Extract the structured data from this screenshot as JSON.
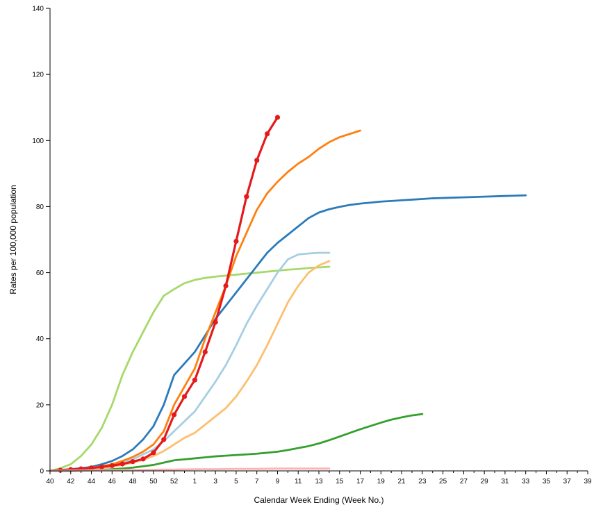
{
  "chart_data": {
    "type": "line",
    "xlabel": "Calendar Week Ending (Week No.)",
    "ylabel": "Rates per 100,000 population",
    "ylim": [
      0,
      140
    ],
    "yticks": [
      0,
      20,
      40,
      60,
      80,
      100,
      120,
      140
    ],
    "x_tick_labels": [
      "40",
      "42",
      "44",
      "46",
      "48",
      "50",
      "52",
      "1",
      "3",
      "5",
      "7",
      "9",
      "11",
      "13",
      "15",
      "17",
      "19",
      "21",
      "23",
      "25",
      "27",
      "29",
      "31",
      "33",
      "35",
      "37",
      "39"
    ],
    "grid": false,
    "series": [
      {
        "color": "#a6d96a",
        "markers": false,
        "values": [
          0,
          0.8,
          2,
          4.5,
          8,
          13,
          20,
          29,
          36,
          42,
          48,
          53,
          55,
          56.8,
          57.8,
          58.4,
          58.8,
          59.1,
          59.4,
          59.7,
          60,
          60.3,
          60.6,
          60.9,
          61.1,
          61.4,
          61.6,
          61.8
        ]
      },
      {
        "color": "#2b7bba",
        "markers": false,
        "values": [
          0,
          0.3,
          0.5,
          0.8,
          1.2,
          2,
          3,
          4.5,
          6.5,
          9.5,
          13.5,
          20,
          29,
          32.5,
          36,
          41,
          46,
          50,
          54,
          58,
          62,
          66,
          69,
          71.5,
          74,
          76.5,
          78.2,
          79.2
        ]
      },
      {
        "color": "#a6cee3",
        "markers": false,
        "values": [
          0,
          0.2,
          0.3,
          0.5,
          0.8,
          1.2,
          1.8,
          2.5,
          3.5,
          5,
          6.5,
          9,
          12,
          15,
          18,
          22.5,
          27,
          32,
          38,
          44.5,
          50,
          55,
          60,
          64,
          65.5,
          65.8,
          66,
          66
        ]
      },
      {
        "color": "#fdbf6f",
        "markers": false,
        "values": [
          0,
          0.1,
          0.2,
          0.4,
          0.6,
          0.9,
          1.3,
          1.8,
          2.5,
          3.3,
          4.5,
          6,
          8,
          10,
          11.5,
          14,
          16.5,
          19,
          22.5,
          27,
          32,
          38,
          44.5,
          51,
          56,
          60,
          62.2,
          63.5
        ]
      },
      {
        "color": "#ff7f0e",
        "markers": false,
        "values": [
          0,
          0.2,
          0.4,
          0.6,
          1,
          1.4,
          2,
          3,
          4.2,
          5.8,
          8,
          12,
          20,
          25.5,
          31,
          40,
          48,
          56,
          65,
          72,
          79,
          84,
          87.5,
          90.5,
          93,
          95,
          97.5,
          99.5,
          101,
          102,
          103
        ]
      },
      {
        "color": "#e41a1c",
        "markers": true,
        "values": [
          0,
          0.2,
          0.4,
          0.6,
          0.9,
          1.2,
          1.6,
          2.1,
          2.8,
          3.6,
          5.5,
          9.5,
          17,
          22.5,
          27.5,
          36,
          45,
          56,
          69.5,
          83,
          94,
          102,
          107
        ]
      },
      {
        "color": "#33a02c",
        "markers": false,
        "values": [
          0,
          0,
          0,
          0.1,
          0.2,
          0.3,
          0.5,
          0.7,
          1,
          1.4,
          1.8,
          2.5,
          3.2,
          3.5,
          3.8,
          4.1,
          4.4,
          4.6,
          4.8,
          5,
          5.2,
          5.5,
          5.8,
          6.3,
          6.9,
          7.5,
          8.3,
          9.3,
          10.4,
          11.5,
          12.6,
          13.6,
          14.6,
          15.5,
          16.2,
          16.8,
          17.2
        ]
      },
      {
        "color": "#fbb4b4",
        "markers": false,
        "values": [
          0,
          0.05,
          0.1,
          0.1,
          0.15,
          0.2,
          0.2,
          0.25,
          0.3,
          0.3,
          0.35,
          0.4,
          0.4,
          0.45,
          0.5,
          0.5,
          0.5,
          0.55,
          0.6,
          0.6,
          0.6,
          0.65,
          0.7,
          0.7,
          0.7,
          0.7,
          0.7,
          0.7
        ]
      },
      {
        "color": "#2b7bba",
        "markers": false,
        "start": 27,
        "values": [
          79.2,
          79.9,
          80.5,
          80.9,
          81.2,
          81.5,
          81.7,
          81.9,
          82.1,
          82.3,
          82.5,
          82.6,
          82.7,
          82.8,
          82.9,
          83,
          83.1,
          83.2,
          83.3,
          83.4
        ]
      }
    ]
  }
}
